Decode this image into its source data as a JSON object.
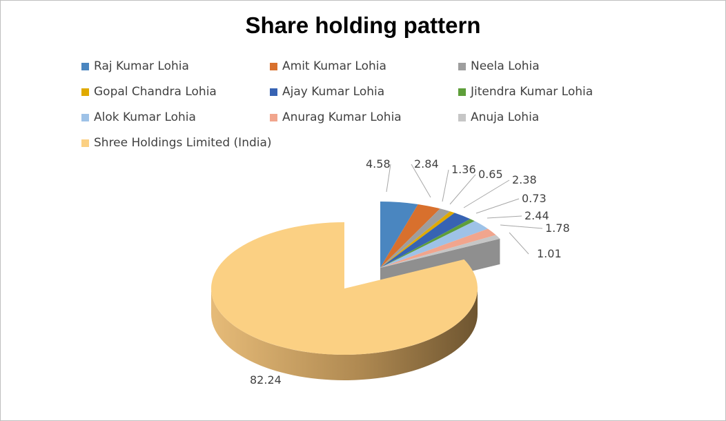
{
  "chart_data": {
    "type": "pie",
    "title": "Share holding pattern",
    "categories": [
      "Raj Kumar Lohia",
      "Amit Kumar Lohia",
      "Neela Lohia",
      "Gopal Chandra Lohia",
      "Ajay Kumar Lohia",
      "Jitendra Kumar Lohia",
      "Alok Kumar Lohia",
      "Anurag Kumar Lohia",
      "Anuja Lohia",
      "Shree Holdings Limited (India)"
    ],
    "values": [
      4.58,
      2.84,
      1.36,
      0.65,
      2.38,
      0.73,
      2.44,
      1.78,
      1.01,
      82.24
    ],
    "data_labels": [
      "4.58",
      "2.84",
      "1.36",
      "0.65",
      "2.38",
      "0.73",
      "2.44",
      "1.78",
      "1.01",
      "82.24"
    ],
    "colors": [
      "#4a86c0",
      "#d8702d",
      "#9e9e9e",
      "#e0aa00",
      "#3763b3",
      "#5e9e3a",
      "#9ec2e7",
      "#f1a58d",
      "#c6c6c6",
      "#fbd083"
    ],
    "legend_position": "top",
    "style": "3d-exploded-pie"
  }
}
